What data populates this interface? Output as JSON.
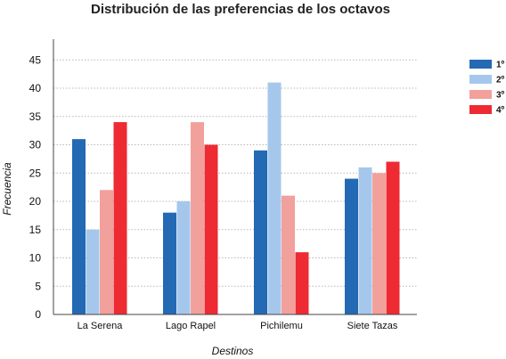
{
  "chart_data": {
    "type": "bar",
    "title": "Distribución de las preferencias de los octavos",
    "xlabel": "Destinos",
    "ylabel": "Frecuencia",
    "categories": [
      "La Serena",
      "Lago Rapel",
      "Pichilemu",
      "Siete Tazas"
    ],
    "series": [
      {
        "name": "1º",
        "values": [
          31,
          18,
          29,
          24
        ],
        "color": "#2469b4"
      },
      {
        "name": "2º",
        "values": [
          15,
          20,
          41,
          26
        ],
        "color": "#a6c7ec"
      },
      {
        "name": "3º",
        "values": [
          22,
          34,
          21,
          25
        ],
        "color": "#f2a09c"
      },
      {
        "name": "4º",
        "values": [
          34,
          30,
          11,
          27
        ],
        "color": "#ee2a33"
      }
    ],
    "ylim": [
      0,
      48
    ],
    "yticks": [
      0,
      5,
      10,
      15,
      20,
      25,
      30,
      35,
      40,
      45
    ],
    "grid": true,
    "legend": "right"
  }
}
